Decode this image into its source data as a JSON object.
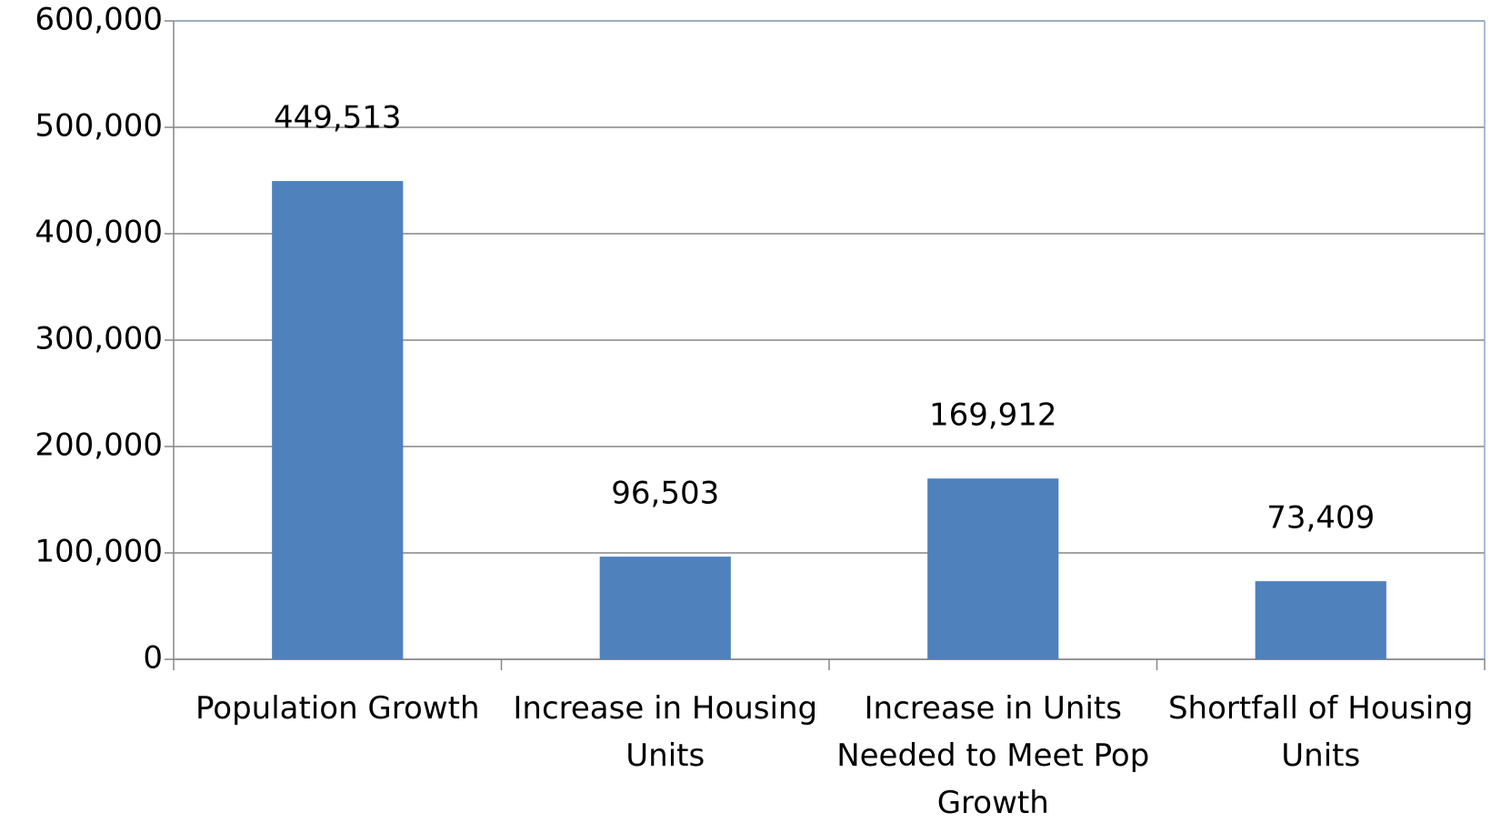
{
  "chart_data": {
    "type": "bar",
    "categories": [
      "Population Growth",
      "Increase in Housing Units",
      "Increase in Units Needed to Meet Pop Growth",
      "Shortfall of Housing Units"
    ],
    "values": [
      449513,
      96503,
      169912,
      73409
    ],
    "value_labels": [
      "449,513",
      "96,503",
      "169,912",
      "73,409"
    ],
    "color": "#4f81bd",
    "ylim": [
      0,
      600000
    ],
    "yticks": [
      0,
      {
        "value": 100000,
        "label": "100,000"
      },
      {
        "value": 200000,
        "label": "200,000"
      },
      {
        "value": 300000,
        "label": "300,000"
      },
      {
        "value": 400000,
        "label": "400,000"
      },
      {
        "value": 500000,
        "label": "500,000"
      },
      {
        "value": 600000,
        "label": "600,000"
      }
    ],
    "grid": true
  }
}
